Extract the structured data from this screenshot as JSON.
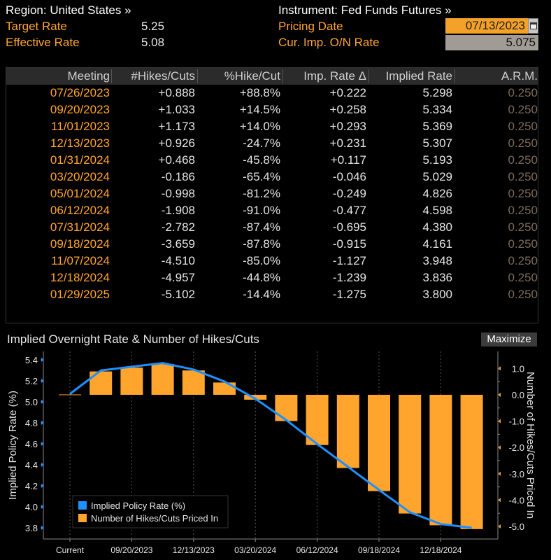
{
  "header": {
    "region_label": "Region: United States »",
    "target_rate_label": "Target Rate",
    "target_rate_value": "5.25",
    "effective_rate_label": "Effective Rate",
    "effective_rate_value": "5.08",
    "instrument_label": "Instrument: Fed Funds Futures »",
    "pricing_date_label": "Pricing Date",
    "pricing_date_value": "07/13/2023",
    "cur_imp_label": "Cur. Imp. O/N Rate",
    "cur_imp_value": "5.075"
  },
  "table": {
    "columns": [
      "Meeting",
      "#Hikes/Cuts",
      "%Hike/Cut",
      "Imp. Rate Δ",
      "Implied Rate",
      "A.R.M."
    ],
    "rows": [
      [
        "07/26/2023",
        "+0.888",
        "+88.8%",
        "+0.222",
        "5.298",
        "0.250"
      ],
      [
        "09/20/2023",
        "+1.033",
        "+14.5%",
        "+0.258",
        "5.334",
        "0.250"
      ],
      [
        "11/01/2023",
        "+1.173",
        "+14.0%",
        "+0.293",
        "5.369",
        "0.250"
      ],
      [
        "12/13/2023",
        "+0.926",
        "-24.7%",
        "+0.231",
        "5.307",
        "0.250"
      ],
      [
        "01/31/2024",
        "+0.468",
        "-45.8%",
        "+0.117",
        "5.193",
        "0.250"
      ],
      [
        "03/20/2024",
        "-0.186",
        "-65.4%",
        "-0.046",
        "5.029",
        "0.250"
      ],
      [
        "05/01/2024",
        "-0.998",
        "-81.2%",
        "-0.249",
        "4.826",
        "0.250"
      ],
      [
        "06/12/2024",
        "-1.908",
        "-91.0%",
        "-0.477",
        "4.598",
        "0.250"
      ],
      [
        "07/31/2024",
        "-2.782",
        "-87.4%",
        "-0.695",
        "4.380",
        "0.250"
      ],
      [
        "09/18/2024",
        "-3.659",
        "-87.8%",
        "-0.915",
        "4.161",
        "0.250"
      ],
      [
        "11/07/2024",
        "-4.510",
        "-85.0%",
        "-1.127",
        "3.948",
        "0.250"
      ],
      [
        "12/18/2024",
        "-4.957",
        "-44.8%",
        "-1.239",
        "3.836",
        "0.250"
      ],
      [
        "01/29/2025",
        "-5.102",
        "-14.4%",
        "-1.275",
        "3.800",
        "0.250"
      ]
    ]
  },
  "chart_title": "Implied Overnight Rate & Number of Hikes/Cuts",
  "maximize_label": "Maximize",
  "colors": {
    "accent_orange": "#ffa42c",
    "line_blue": "#1e90ff",
    "bar_orange": "#ffa42c",
    "background": "#000000"
  },
  "chart_data": {
    "type": "bar+line",
    "categories": [
      "Current",
      "07/26/2023",
      "09/20/2023",
      "11/01/2023",
      "12/13/2023",
      "01/31/2024",
      "03/20/2024",
      "05/01/2024",
      "06/12/2024",
      "07/31/2024",
      "09/18/2024",
      "11/07/2024",
      "12/18/2024",
      "01/29/2025"
    ],
    "x_tick_labels": [
      "Current",
      "09/20/2023",
      "12/13/2023",
      "03/20/2024",
      "06/12/2024",
      "09/18/2024",
      "12/18/2024"
    ],
    "series": [
      {
        "name": "Implied Policy Rate (%)",
        "type": "line",
        "axis": "left",
        "color": "#1e90ff",
        "values": [
          5.075,
          5.298,
          5.334,
          5.369,
          5.307,
          5.193,
          5.029,
          4.826,
          4.598,
          4.38,
          4.161,
          3.948,
          3.836,
          3.8
        ]
      },
      {
        "name": "Number of Hikes/Cuts Priced In",
        "type": "bar",
        "axis": "right",
        "color": "#ffa42c",
        "values": [
          0,
          0.888,
          1.033,
          1.173,
          0.926,
          0.468,
          -0.186,
          -0.998,
          -1.908,
          -2.782,
          -3.659,
          -4.51,
          -4.957,
          -5.102
        ]
      }
    ],
    "y_left": {
      "label": "Implied Policy Rate (%)",
      "ylim": [
        3.75,
        5.45
      ],
      "ticks": [
        "5.4",
        "5.2",
        "5.0",
        "4.8",
        "4.6",
        "4.4",
        "4.2",
        "4.0",
        "3.8"
      ]
    },
    "y_right": {
      "label": "Number of Hikes/Cuts Priced In",
      "ylim": [
        -5.3,
        1.4
      ],
      "ticks": [
        "1.0",
        "0.0",
        "-1.0",
        "-2.0",
        "-3.0",
        "-4.0",
        "-5.0"
      ]
    },
    "legend_placement": "bottom-left"
  }
}
